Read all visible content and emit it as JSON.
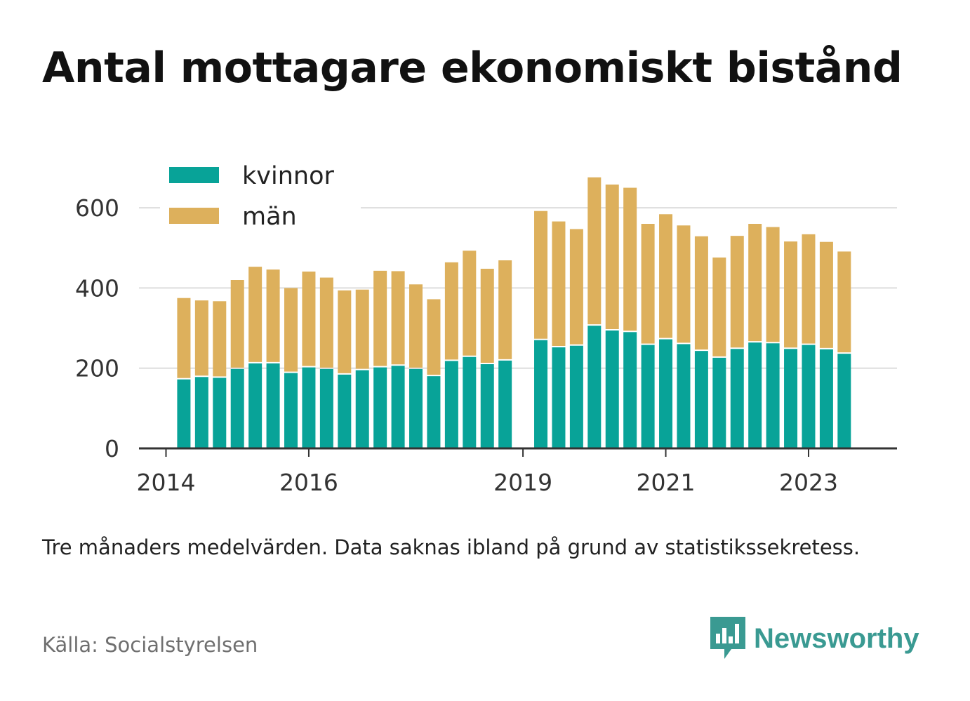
{
  "title": "Antal mottagare ekonomiskt bistånd",
  "note": "Tre månaders medelvärden. Data saknas ibland på grund av statistikssekretess.",
  "source": "Källa: Socialstyrelsen",
  "brand": {
    "name": "Newsworthy",
    "icon": "newsworthy-bar-chart-icon"
  },
  "colors": {
    "kvinnor": "#08a398",
    "man": "#ddb05c",
    "grid": "#dddddd",
    "axis": "#333333"
  },
  "chart_data": {
    "type": "bar",
    "stacked": true,
    "title": "Antal mottagare ekonomiskt bistånd",
    "ylim": [
      0,
      700
    ],
    "yticks": [
      0,
      200,
      400,
      600
    ],
    "grid": true,
    "legend_position": "top-left",
    "xtick_labels": [
      "2014",
      "2016",
      "2019",
      "2021",
      "2023"
    ],
    "periods": [
      "2014-Q1",
      "2014-Q2",
      "2014-Q3",
      "2014-Q4",
      "2015-Q1",
      "2015-Q2",
      "2015-Q3",
      "2015-Q4",
      "2016-Q1",
      "2016-Q2",
      "2016-Q3",
      "2016-Q4",
      "2017-Q1",
      "2017-Q2",
      "2017-Q3",
      "2017-Q4",
      "2018-Q1",
      "2018-Q2",
      "2018-Q3",
      "2018-Q4",
      "2019-Q1",
      "2019-Q2",
      "2019-Q3",
      "2019-Q4",
      "2020-Q1",
      "2020-Q2",
      "2020-Q3",
      "2020-Q4",
      "2021-Q1",
      "2021-Q2",
      "2021-Q3",
      "2021-Q4",
      "2022-Q1",
      "2022-Q2",
      "2022-Q3",
      "2022-Q4",
      "2023-Q1",
      "2023-Q2",
      "2023-Q3",
      "2023-Q4"
    ],
    "series": [
      {
        "name": "kvinnor",
        "values": [
          null,
          172,
          178,
          176,
          198,
          212,
          212,
          188,
          202,
          198,
          184,
          195,
          202,
          206,
          198,
          180,
          218,
          228,
          210,
          219,
          null,
          270,
          252,
          256,
          306,
          294,
          290,
          258,
          272,
          260,
          243,
          226,
          248,
          264,
          262,
          248,
          258,
          247,
          236,
          null
        ]
      },
      {
        "name": "män",
        "values": [
          null,
          203,
          191,
          191,
          222,
          241,
          234,
          212,
          239,
          228,
          210,
          201,
          241,
          236,
          211,
          192,
          246,
          265,
          238,
          250,
          null,
          322,
          314,
          291,
          370,
          364,
          360,
          302,
          312,
          296,
          286,
          250,
          282,
          296,
          290,
          268,
          276,
          268,
          255,
          null
        ]
      }
    ]
  }
}
